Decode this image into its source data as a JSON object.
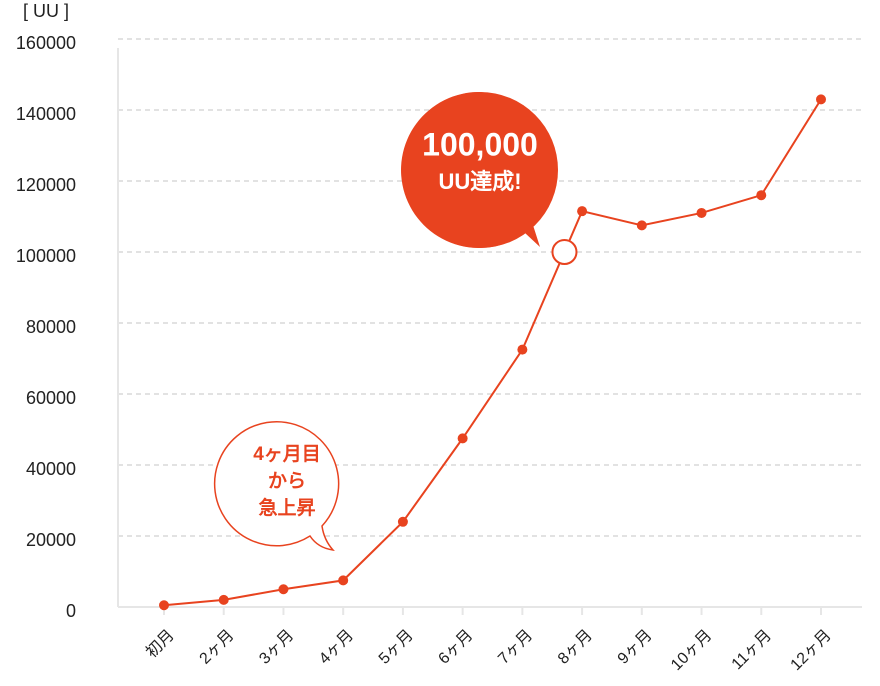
{
  "chart_data": {
    "type": "line",
    "y_label": "[ UU ]",
    "categories": [
      "初月",
      "2ヶ月",
      "3ヶ月",
      "4ヶ月",
      "5ヶ月",
      "6ヶ月",
      "7ヶ月",
      "8ヶ月",
      "9ヶ月",
      "10ヶ月",
      "11ヶ月",
      "12ヶ月"
    ],
    "series": [
      {
        "color": "#e8431f",
        "values": [
          500,
          2000,
          5000,
          7500,
          24000,
          47500,
          72500,
          111500,
          107500,
          111000,
          116000,
          143000
        ]
      }
    ],
    "ylim": [
      0,
      160000
    ],
    "yticks": [
      0,
      20000,
      40000,
      60000,
      80000,
      100000,
      120000,
      140000,
      160000
    ],
    "grid": true,
    "annotations": [
      {
        "lines": [
          "100,000",
          "UU達成!"
        ],
        "value": 100000,
        "style": "filled"
      },
      {
        "lines": [
          "4ヶ月目",
          "から",
          "急上昇"
        ],
        "style": "outline"
      }
    ]
  }
}
